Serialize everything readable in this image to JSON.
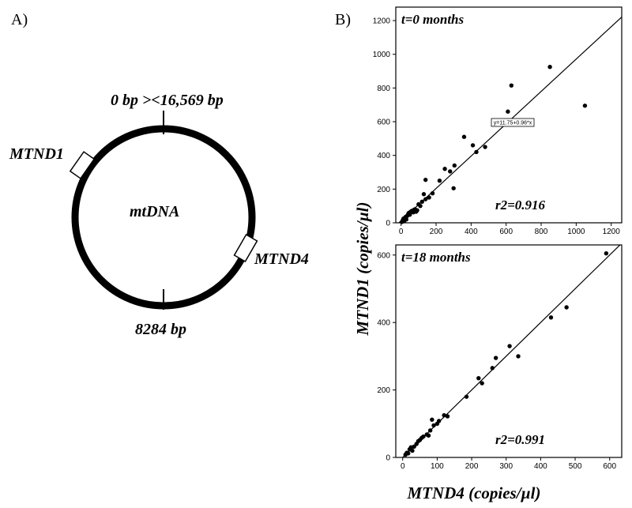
{
  "panel_a": {
    "label": "A)",
    "top_marker": "0 bp ><16,569 bp",
    "bottom_marker": "8284 bp",
    "center_label": "mtDNA",
    "gene1": "MTND1",
    "gene2": "MTND4"
  },
  "panel_b": {
    "label": "B)",
    "ylabel": "MTND1 (copies/µl)",
    "xlabel": "MTND4 (copies/µl)"
  },
  "chart_data": [
    {
      "type": "scatter",
      "title": "t=0 months",
      "annotation": "r2=0.916",
      "fit_label": "y=11.75+0.96*x",
      "fit": {
        "intercept": 11.75,
        "slope": 0.96
      },
      "xlim": [
        -30,
        1260
      ],
      "ylim": [
        0,
        1280
      ],
      "xticks": [
        0,
        200,
        400,
        600,
        800,
        1000,
        1200
      ],
      "yticks": [
        0,
        200,
        400,
        600,
        800,
        1000,
        1200
      ],
      "show_xtick_labels": true,
      "grid": false,
      "points": [
        [
          5,
          5
        ],
        [
          10,
          15
        ],
        [
          14,
          25
        ],
        [
          18,
          10
        ],
        [
          22,
          30
        ],
        [
          26,
          35
        ],
        [
          30,
          20
        ],
        [
          34,
          40
        ],
        [
          38,
          45
        ],
        [
          42,
          55
        ],
        [
          46,
          60
        ],
        [
          50,
          48
        ],
        [
          55,
          65
        ],
        [
          60,
          70
        ],
        [
          65,
          72
        ],
        [
          70,
          62
        ],
        [
          75,
          78
        ],
        [
          80,
          80
        ],
        [
          86,
          66
        ],
        [
          92,
          74
        ],
        [
          100,
          110
        ],
        [
          110,
          100
        ],
        [
          120,
          125
        ],
        [
          130,
          170
        ],
        [
          140,
          140
        ],
        [
          140,
          255
        ],
        [
          160,
          150
        ],
        [
          180,
          175
        ],
        [
          220,
          250
        ],
        [
          250,
          320
        ],
        [
          280,
          305
        ],
        [
          300,
          205
        ],
        [
          305,
          340
        ],
        [
          360,
          510
        ],
        [
          410,
          460
        ],
        [
          430,
          420
        ],
        [
          480,
          450
        ],
        [
          610,
          660
        ],
        [
          630,
          815
        ],
        [
          850,
          925
        ],
        [
          1050,
          695
        ]
      ]
    },
    {
      "type": "scatter",
      "title": "t=18 months",
      "annotation": "r2=0.991",
      "fit": {
        "intercept": 0,
        "slope": 1.0
      },
      "xlim": [
        -20,
        635
      ],
      "ylim": [
        0,
        630
      ],
      "xticks": [
        0,
        100,
        200,
        300,
        400,
        500,
        600
      ],
      "yticks": [
        0,
        200,
        400,
        600
      ],
      "show_xtick_labels": true,
      "grid": false,
      "points": [
        [
          8,
          8
        ],
        [
          12,
          14
        ],
        [
          16,
          12
        ],
        [
          20,
          24
        ],
        [
          24,
          30
        ],
        [
          28,
          20
        ],
        [
          33,
          32
        ],
        [
          40,
          40
        ],
        [
          45,
          48
        ],
        [
          50,
          52
        ],
        [
          55,
          58
        ],
        [
          60,
          62
        ],
        [
          70,
          68
        ],
        [
          75,
          65
        ],
        [
          80,
          80
        ],
        [
          85,
          112
        ],
        [
          90,
          95
        ],
        [
          100,
          100
        ],
        [
          105,
          108
        ],
        [
          120,
          125
        ],
        [
          130,
          122
        ],
        [
          185,
          180
        ],
        [
          220,
          235
        ],
        [
          230,
          220
        ],
        [
          260,
          265
        ],
        [
          270,
          295
        ],
        [
          310,
          330
        ],
        [
          335,
          300
        ],
        [
          430,
          415
        ],
        [
          475,
          445
        ],
        [
          590,
          605
        ]
      ]
    }
  ]
}
